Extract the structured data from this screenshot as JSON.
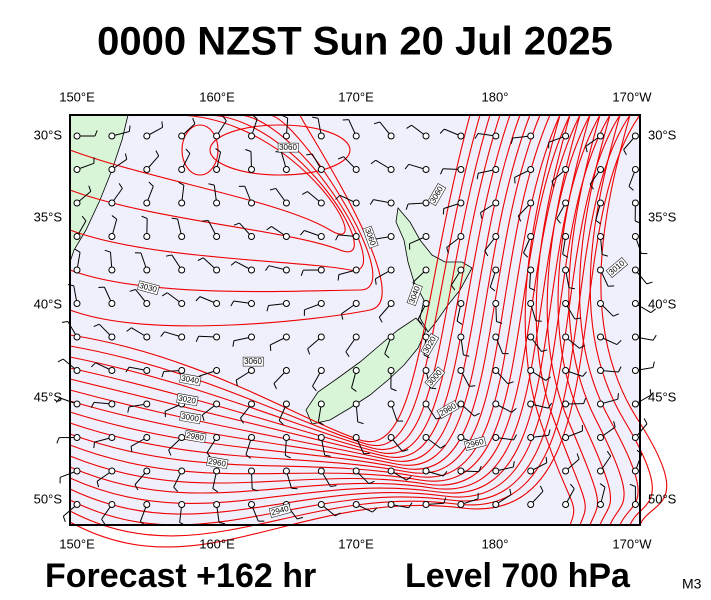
{
  "title": "0000 NZST Sun 20 Jul 2025",
  "axes": {
    "lon": [
      "150°E",
      "160°E",
      "170°E",
      "180°",
      "170°W"
    ],
    "lat": [
      "30°S",
      "35°S",
      "40°S",
      "45°S",
      "50°S"
    ]
  },
  "contour_labels": [
    "3060",
    "3060",
    "3030",
    "3060",
    "3040",
    "3020",
    "3000",
    "2980",
    "2960",
    "2940",
    "3060",
    "3040",
    "3020",
    "3000",
    "2980",
    "2960",
    "3010"
  ],
  "footer": {
    "forecast": "Forecast +162 hr",
    "level": "Level 700 hPa",
    "model": "M3"
  }
}
